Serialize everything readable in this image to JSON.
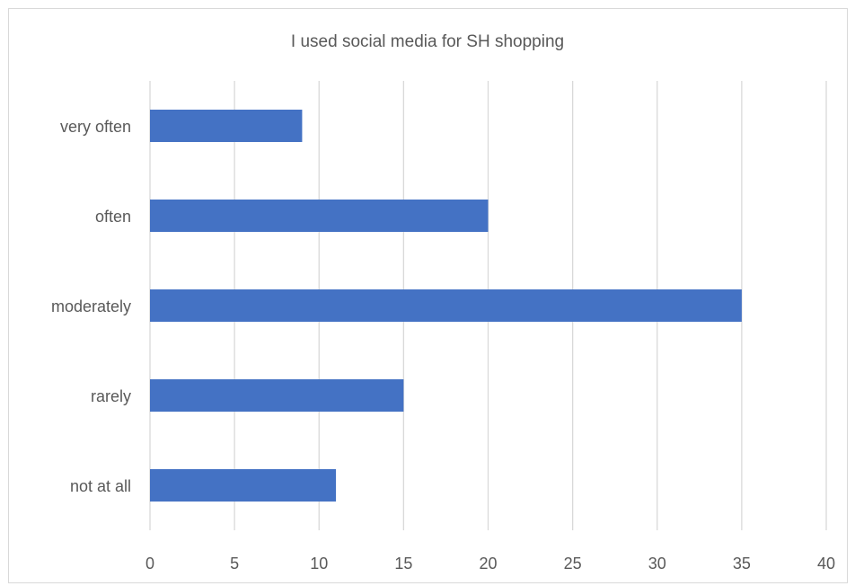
{
  "chart_data": {
    "type": "bar",
    "orientation": "horizontal",
    "title": "I used social media for SH shopping",
    "categories": [
      "very often",
      "often",
      "moderately",
      "rarely",
      "not at all"
    ],
    "values": [
      9,
      20,
      35,
      15,
      11
    ],
    "xlim": [
      0,
      40
    ],
    "xticks": [
      "0",
      "5",
      "10",
      "15",
      "20",
      "25",
      "30",
      "35",
      "40"
    ],
    "xlabel": "",
    "ylabel": "",
    "grid": "vertical",
    "legend": "none",
    "bar_color": "#4472C4",
    "grid_color": "#d9d9d9"
  }
}
